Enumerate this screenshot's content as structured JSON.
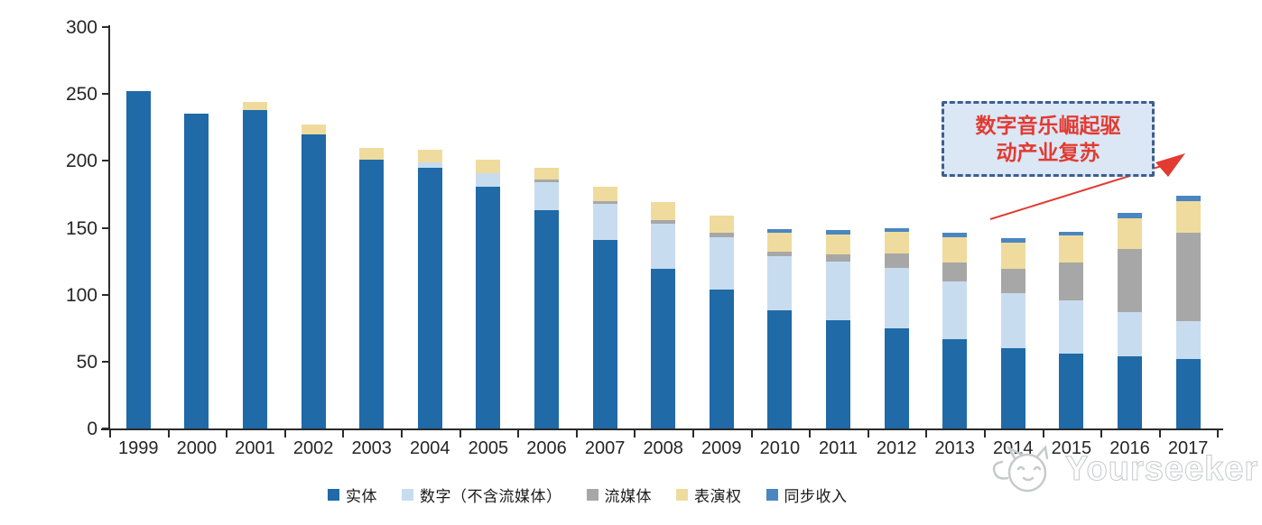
{
  "chart_data": {
    "type": "bar",
    "stacked": true,
    "title": "",
    "xlabel": "",
    "ylabel": "",
    "ylim": [
      0,
      300
    ],
    "yticks": [
      0,
      50,
      100,
      150,
      200,
      250,
      300
    ],
    "grid": false,
    "legend_position": "bottom",
    "categories": [
      "1999",
      "2000",
      "2001",
      "2002",
      "2003",
      "2004",
      "2005",
      "2006",
      "2007",
      "2008",
      "2009",
      "2010",
      "2011",
      "2012",
      "2013",
      "2014",
      "2015",
      "2016",
      "2017"
    ],
    "series": [
      {
        "name": "实体",
        "color": "#1f6aa7",
        "values": [
          252,
          235,
          238,
          220,
          201,
          195,
          181,
          163,
          141,
          119,
          104,
          88,
          81,
          75,
          67,
          60,
          56,
          54,
          52
        ]
      },
      {
        "name": "数字（不含流媒体）",
        "color": "#c8dcf0",
        "values": [
          0,
          0,
          0,
          0,
          0,
          4,
          10,
          21,
          27,
          34,
          39,
          41,
          44,
          45,
          43,
          41,
          40,
          33,
          28
        ]
      },
      {
        "name": "流媒体",
        "color": "#a7a7a7",
        "values": [
          0,
          0,
          0,
          0,
          0,
          0,
          0,
          2,
          2,
          3,
          3,
          3,
          5,
          11,
          14,
          18,
          28,
          47,
          66
        ]
      },
      {
        "name": "表演权",
        "color": "#efdb9d",
        "values": [
          0,
          0,
          6,
          7,
          9,
          9,
          10,
          9,
          11,
          13,
          13,
          14,
          15,
          16,
          19,
          20,
          20,
          23,
          24
        ]
      },
      {
        "name": "同步收入",
        "color": "#4a86c2",
        "values": [
          0,
          0,
          0,
          0,
          0,
          0,
          0,
          0,
          0,
          0,
          0,
          3,
          3,
          3,
          3,
          3,
          3,
          4,
          4
        ]
      }
    ]
  },
  "annotation": {
    "line1": "数字音乐崛起驱",
    "line2": "动产业复苏",
    "text_color": "#e23b32",
    "box_fill": "#dbe7f5",
    "box_border": "#3d5f8f",
    "arrow_color": "#e23b32"
  },
  "watermark": {
    "text": "Yourseeker"
  }
}
